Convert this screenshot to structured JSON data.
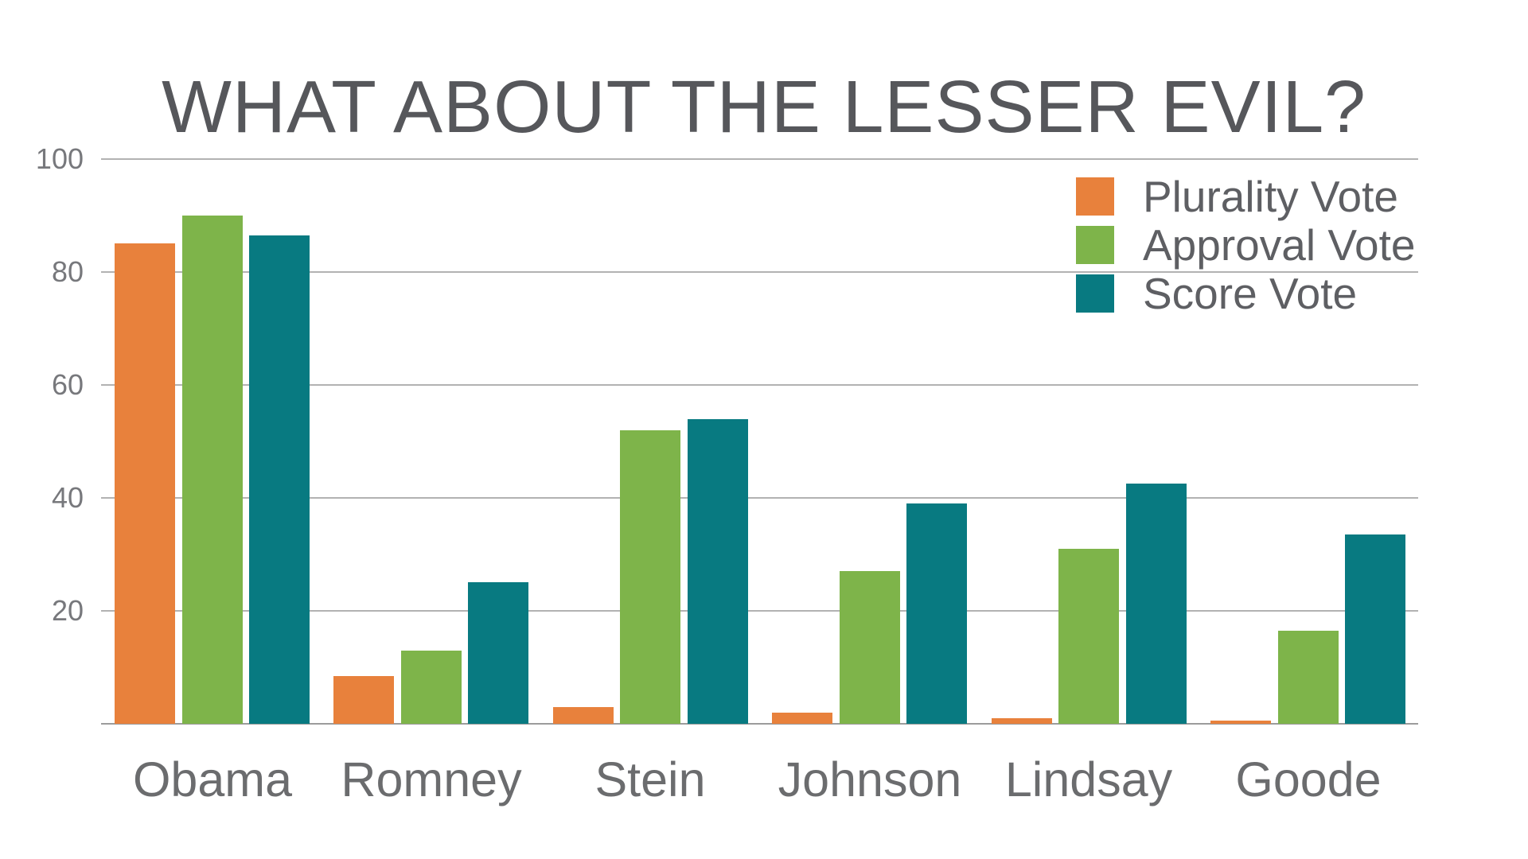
{
  "title": "WHAT ABOUT THE LESSER EVIL?",
  "chart_data": {
    "type": "bar",
    "title": "WHAT ABOUT THE LESSER EVIL?",
    "xlabel": "",
    "ylabel": "",
    "categories": [
      "Obama",
      "Romney",
      "Stein",
      "Johnson",
      "Lindsay",
      "Goode"
    ],
    "series": [
      {
        "name": "Plurality Vote",
        "color": "#e8813c",
        "values": [
          85,
          8.5,
          3,
          2,
          1,
          0.6
        ]
      },
      {
        "name": "Approval Vote",
        "color": "#7eb44a",
        "values": [
          90,
          13,
          52,
          27,
          31,
          16.5
        ]
      },
      {
        "name": "Score Vote",
        "color": "#087a81",
        "values": [
          86.5,
          25,
          54,
          39,
          42.5,
          33.5
        ]
      }
    ],
    "y_ticks": [
      20,
      40,
      60,
      80,
      100
    ],
    "ylim": [
      0,
      100
    ],
    "grid": true,
    "legend_position": "top-right",
    "colors": {
      "title_text": "#56575b",
      "axis_text": "#6b6c6e",
      "tick_text": "#77787c",
      "gridline": "#b2b2b2",
      "baseline": "#9c9c9c",
      "background": "#ffffff"
    }
  }
}
